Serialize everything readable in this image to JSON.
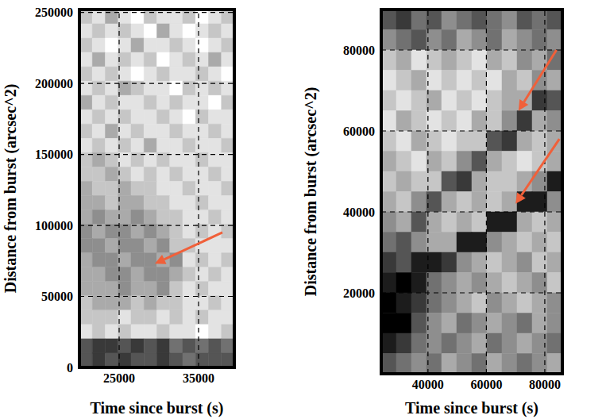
{
  "chart_data": [
    {
      "type": "heatmap",
      "x_label": "Time since burst (s)",
      "y_label": "Distance from burst (arcsec^2)",
      "xlim": [
        20000,
        39500
      ],
      "ylim": [
        0,
        252000
      ],
      "xticks": [
        25000,
        35000
      ],
      "yticks": [
        0,
        50000,
        100000,
        150000,
        200000,
        250000
      ],
      "grid": true,
      "color_range": [
        0,
        9
      ],
      "cells": [
        [
          2,
          1,
          3,
          1,
          0,
          2,
          1,
          1,
          2,
          0,
          1,
          2
        ],
        [
          1,
          2,
          1,
          2,
          1,
          0,
          3,
          1,
          0,
          1,
          2,
          1
        ],
        [
          2,
          1,
          0,
          1,
          3,
          1,
          1,
          2,
          1,
          0,
          1,
          2
        ],
        [
          1,
          3,
          1,
          2,
          1,
          2,
          0,
          1,
          2,
          1,
          3,
          1
        ],
        [
          2,
          1,
          2,
          1,
          0,
          1,
          2,
          1,
          1,
          2,
          1,
          0
        ],
        [
          1,
          2,
          1,
          3,
          2,
          1,
          1,
          0,
          2,
          1,
          2,
          1
        ],
        [
          3,
          1,
          2,
          1,
          1,
          2,
          1,
          2,
          1,
          1,
          0,
          2
        ],
        [
          1,
          2,
          1,
          2,
          1,
          1,
          2,
          1,
          0,
          2,
          1,
          1
        ],
        [
          2,
          1,
          3,
          1,
          2,
          1,
          1,
          2,
          1,
          1,
          2,
          1
        ],
        [
          1,
          2,
          1,
          2,
          1,
          3,
          1,
          1,
          2,
          1,
          1,
          2
        ],
        [
          2,
          3,
          2,
          1,
          2,
          1,
          2,
          1,
          1,
          2,
          1,
          1
        ],
        [
          2,
          2,
          3,
          2,
          1,
          2,
          1,
          2,
          1,
          1,
          2,
          1
        ],
        [
          3,
          2,
          2,
          3,
          2,
          2,
          1,
          1,
          2,
          1,
          1,
          2
        ],
        [
          3,
          3,
          2,
          3,
          3,
          2,
          2,
          1,
          1,
          2,
          1,
          1
        ],
        [
          3,
          4,
          3,
          3,
          4,
          3,
          2,
          2,
          1,
          1,
          2,
          1
        ],
        [
          4,
          3,
          4,
          4,
          3,
          4,
          3,
          2,
          1,
          2,
          1,
          2
        ],
        [
          4,
          4,
          3,
          4,
          4,
          3,
          4,
          2,
          2,
          1,
          1,
          1
        ],
        [
          3,
          4,
          4,
          3,
          4,
          4,
          3,
          4,
          1,
          2,
          1,
          2
        ],
        [
          3,
          3,
          4,
          4,
          3,
          4,
          4,
          3,
          2,
          1,
          2,
          1
        ],
        [
          3,
          3,
          3,
          4,
          3,
          3,
          4,
          2,
          1,
          2,
          1,
          1
        ],
        [
          2,
          3,
          3,
          3,
          2,
          3,
          2,
          2,
          1,
          1,
          2,
          1
        ],
        [
          2,
          2,
          2,
          1,
          2,
          2,
          1,
          2,
          1,
          2,
          1,
          1
        ],
        [
          1,
          2,
          1,
          2,
          1,
          1,
          2,
          1,
          1,
          0,
          1,
          2
        ],
        [
          6,
          7,
          7,
          6,
          7,
          6,
          7,
          5,
          6,
          5,
          6,
          5
        ],
        [
          6,
          7,
          6,
          7,
          6,
          6,
          7,
          6,
          5,
          6,
          6,
          6
        ]
      ],
      "arrows": [
        {
          "from": [
            38000,
            95000
          ],
          "to": [
            29500,
            73000
          ],
          "color": "#f0603a"
        }
      ]
    },
    {
      "type": "heatmap",
      "x_label": "Time since burst (s)",
      "y_label": "Distance from burst (arcsec^2)",
      "xlim": [
        24000,
        86000
      ],
      "ylim": [
        0,
        90000
      ],
      "xticks": [
        40000,
        60000,
        80000
      ],
      "yticks": [
        20000,
        40000,
        60000,
        80000
      ],
      "grid": true,
      "color_range": [
        0,
        9
      ],
      "cells": [
        [
          6,
          7,
          5,
          6,
          4,
          5,
          6,
          5,
          4,
          6,
          5,
          6
        ],
        [
          4,
          5,
          6,
          4,
          5,
          3,
          4,
          5,
          3,
          4,
          5,
          4
        ],
        [
          2,
          3,
          1,
          2,
          3,
          2,
          1,
          3,
          2,
          4,
          3,
          5
        ],
        [
          1,
          2,
          3,
          1,
          2,
          1,
          2,
          1,
          3,
          2,
          4,
          3
        ],
        [
          2,
          1,
          2,
          3,
          1,
          2,
          1,
          2,
          3,
          3,
          7,
          6
        ],
        [
          1,
          3,
          2,
          1,
          2,
          1,
          3,
          2,
          4,
          7,
          3,
          4
        ],
        [
          2,
          1,
          3,
          2,
          1,
          2,
          2,
          6,
          7,
          3,
          2,
          3
        ],
        [
          3,
          2,
          1,
          3,
          2,
          4,
          6,
          3,
          2,
          1,
          2,
          3
        ],
        [
          2,
          3,
          2,
          2,
          6,
          7,
          3,
          2,
          2,
          3,
          4,
          8
        ],
        [
          3,
          2,
          4,
          6,
          3,
          2,
          3,
          2,
          3,
          8,
          8,
          4
        ],
        [
          4,
          3,
          6,
          3,
          2,
          3,
          2,
          8,
          8,
          3,
          2,
          3
        ],
        [
          5,
          6,
          4,
          3,
          3,
          8,
          8,
          4,
          3,
          2,
          3,
          2
        ],
        [
          7,
          6,
          8,
          8,
          7,
          4,
          3,
          2,
          3,
          4,
          2,
          3
        ],
        [
          8,
          9,
          8,
          5,
          4,
          3,
          4,
          3,
          2,
          3,
          4,
          2
        ],
        [
          9,
          8,
          7,
          5,
          4,
          3,
          2,
          4,
          3,
          2,
          3,
          4
        ],
        [
          9,
          9,
          6,
          4,
          3,
          5,
          4,
          3,
          4,
          5,
          3,
          4
        ],
        [
          8,
          7,
          5,
          4,
          5,
          4,
          3,
          5,
          4,
          3,
          4,
          5
        ],
        [
          6,
          5,
          4,
          5,
          3,
          4,
          5,
          3,
          4,
          5,
          4,
          3
        ]
      ],
      "arrows": [
        {
          "from": [
            84000,
            80000
          ],
          "to": [
            71000,
            65000
          ],
          "color": "#f0603a"
        },
        {
          "from": [
            85000,
            58000
          ],
          "to": [
            70000,
            42000
          ],
          "color": "#f0603a"
        }
      ]
    }
  ]
}
